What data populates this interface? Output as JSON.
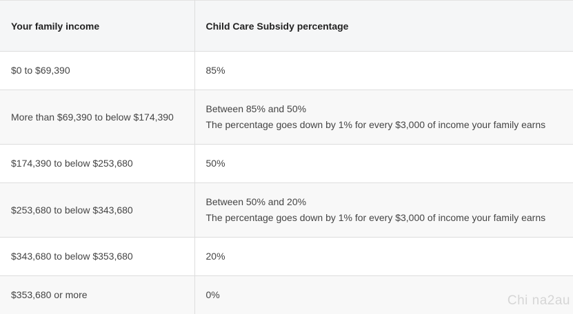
{
  "table": {
    "headers": [
      "Your family income",
      "Child Care Subsidy percentage"
    ],
    "rows": [
      {
        "income": "$0 to $69,390",
        "percentage": [
          "85%"
        ]
      },
      {
        "income": "More than $69,390 to below $174,390",
        "percentage": [
          "Between 85% and 50%",
          "The percentage goes down by 1% for every $3,000 of income your family earns"
        ]
      },
      {
        "income": "$174,390 to below $253,680",
        "percentage": [
          "50%"
        ]
      },
      {
        "income": "$253,680 to below $343,680",
        "percentage": [
          "Between 50% and 20%",
          "The percentage goes down by 1% for every $3,000 of income your family earns"
        ]
      },
      {
        "income": "$343,680 to below $353,680",
        "percentage": [
          "20%"
        ]
      },
      {
        "income": "$353,680 or more",
        "percentage": [
          "0%"
        ]
      }
    ]
  },
  "watermark": "Chi na2au"
}
